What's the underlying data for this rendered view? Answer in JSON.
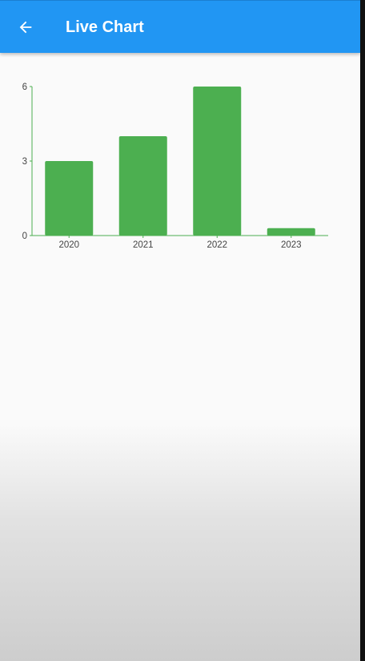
{
  "app_bar": {
    "title": "Live Chart",
    "back_icon": "arrow-left-icon",
    "color": "#2196f3"
  },
  "chart_data": {
    "type": "bar",
    "categories": [
      "2020",
      "2021",
      "2022",
      "2023"
    ],
    "values": [
      3,
      4,
      6,
      0.3
    ],
    "ylim": [
      0,
      6
    ],
    "yticks": [
      "0",
      "3",
      "6"
    ],
    "title": "",
    "xlabel": "",
    "ylabel": "",
    "bar_color": "#4caf50",
    "axis_color": "#4caf50",
    "grid": false
  }
}
